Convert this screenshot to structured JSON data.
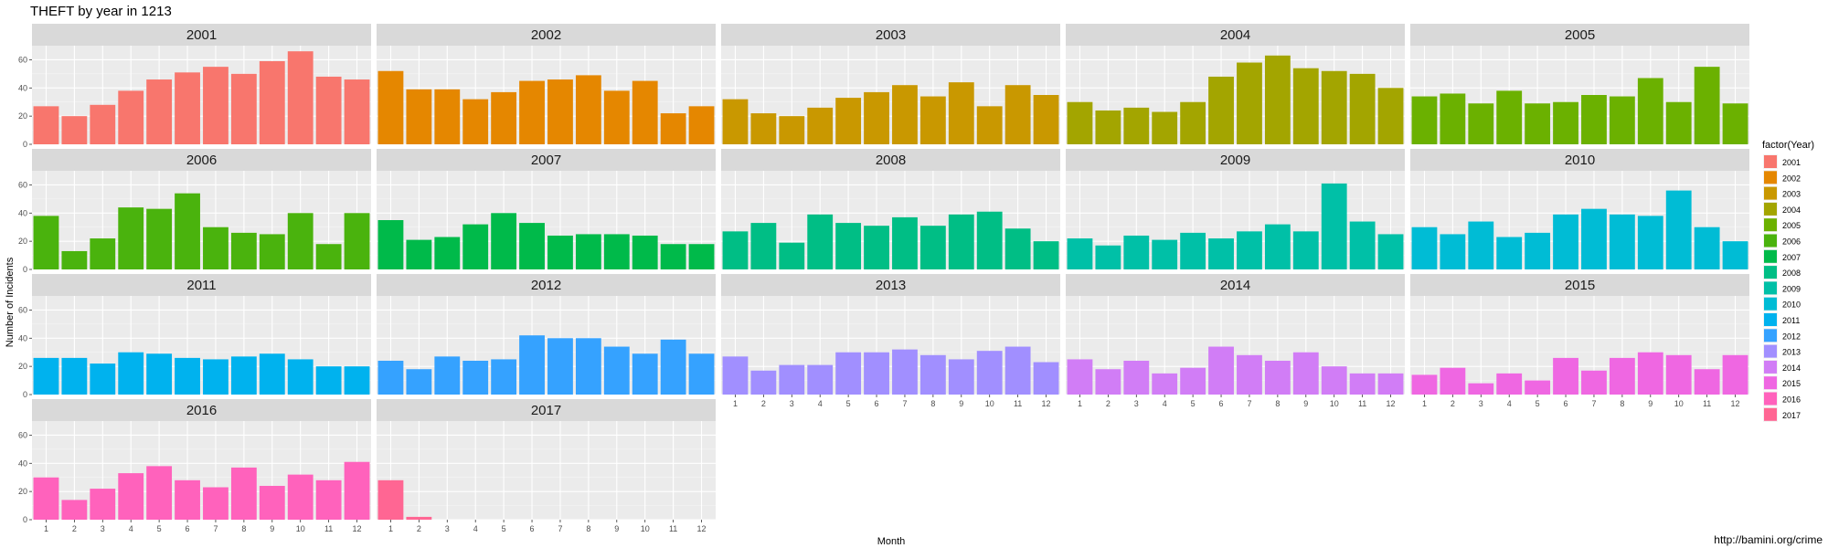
{
  "chart_data": {
    "type": "bar",
    "title": "THEFT by year in 1213",
    "xlabel": "Month",
    "ylabel": "Number of Incidents",
    "ylim": [
      0,
      70
    ],
    "yticks": [
      0,
      20,
      40,
      60
    ],
    "months": [
      "1",
      "2",
      "3",
      "4",
      "5",
      "6",
      "7",
      "8",
      "9",
      "10",
      "11",
      "12"
    ],
    "grid": true,
    "facet_columns": 5,
    "legend": {
      "title": "factor(Year)",
      "position": "right"
    },
    "caption": "http://bamini.org/crime",
    "panels": [
      {
        "year": "2001",
        "color": "#F8766D",
        "values": [
          27,
          20,
          28,
          38,
          46,
          51,
          55,
          50,
          59,
          66,
          48,
          46
        ]
      },
      {
        "year": "2002",
        "color": "#E58700",
        "values": [
          52,
          39,
          39,
          32,
          37,
          45,
          46,
          49,
          38,
          45,
          22,
          27
        ]
      },
      {
        "year": "2003",
        "color": "#C99800",
        "values": [
          32,
          22,
          20,
          26,
          33,
          37,
          42,
          34,
          44,
          27,
          42,
          35
        ]
      },
      {
        "year": "2004",
        "color": "#A3A500",
        "values": [
          30,
          24,
          26,
          23,
          30,
          48,
          58,
          63,
          54,
          52,
          50,
          40
        ]
      },
      {
        "year": "2005",
        "color": "#6BB100",
        "values": [
          34,
          36,
          29,
          38,
          29,
          30,
          35,
          34,
          47,
          30,
          55,
          29
        ]
      },
      {
        "year": "2006",
        "color": "#00BA38",
        "values": [
          38,
          13,
          22,
          44,
          43,
          54,
          30,
          26,
          25,
          40,
          18,
          40
        ],
        "tint": "#4AB30D"
      },
      {
        "year": "2007",
        "color": "#00BF7D",
        "values": [
          35,
          21,
          23,
          32,
          40,
          33,
          24,
          25,
          25,
          24,
          18,
          18
        ],
        "tint": "#00BA4A"
      },
      {
        "year": "2008",
        "color": "#00C0AF",
        "values": [
          27,
          33,
          19,
          39,
          33,
          31,
          37,
          31,
          39,
          41,
          29,
          20
        ],
        "tint": "#00BE85"
      },
      {
        "year": "2009",
        "color": "#00BCD8",
        "values": [
          22,
          17,
          24,
          21,
          26,
          22,
          27,
          32,
          27,
          61,
          34,
          25
        ],
        "tint": "#00C0A7"
      },
      {
        "year": "2010",
        "color": "#00B0F6",
        "values": [
          30,
          25,
          34,
          23,
          26,
          39,
          43,
          39,
          38,
          56,
          30,
          20
        ],
        "tint": "#00BCD5"
      },
      {
        "year": "2011",
        "color": "#619CFF",
        "values": [
          26,
          26,
          22,
          30,
          29,
          26,
          25,
          27,
          29,
          25,
          20,
          20
        ],
        "tint": "#00B2EE"
      },
      {
        "year": "2012",
        "color": "#B983FF",
        "values": [
          24,
          18,
          27,
          24,
          25,
          42,
          40,
          40,
          34,
          29,
          39,
          29
        ],
        "tint": "#35A2FF"
      },
      {
        "year": "2013",
        "color": "#E76BF3",
        "values": [
          27,
          17,
          21,
          21,
          30,
          30,
          32,
          28,
          25,
          31,
          34,
          23
        ],
        "tint": "#A18FFF"
      },
      {
        "year": "2014",
        "color": "#FD61D1",
        "values": [
          25,
          18,
          24,
          15,
          19,
          34,
          28,
          24,
          30,
          20,
          15,
          15
        ],
        "tint": "#D17DF6"
      },
      {
        "year": "2015",
        "color": "#FF67A4",
        "values": [
          14,
          19,
          8,
          15,
          10,
          26,
          17,
          26,
          30,
          28,
          18,
          28
        ],
        "tint": "#EF67E2"
      },
      {
        "year": "2016",
        "color": "#FF6C91",
        "values": [
          30,
          14,
          22,
          33,
          38,
          28,
          23,
          37,
          24,
          32,
          28,
          41
        ],
        "tint": "#FF62BC"
      },
      {
        "year": "2017",
        "color": "#FF6C91",
        "values": [
          28,
          2,
          0,
          0,
          0,
          0,
          0,
          0,
          0,
          0,
          0,
          0
        ],
        "tint": "#FF6693"
      }
    ]
  }
}
